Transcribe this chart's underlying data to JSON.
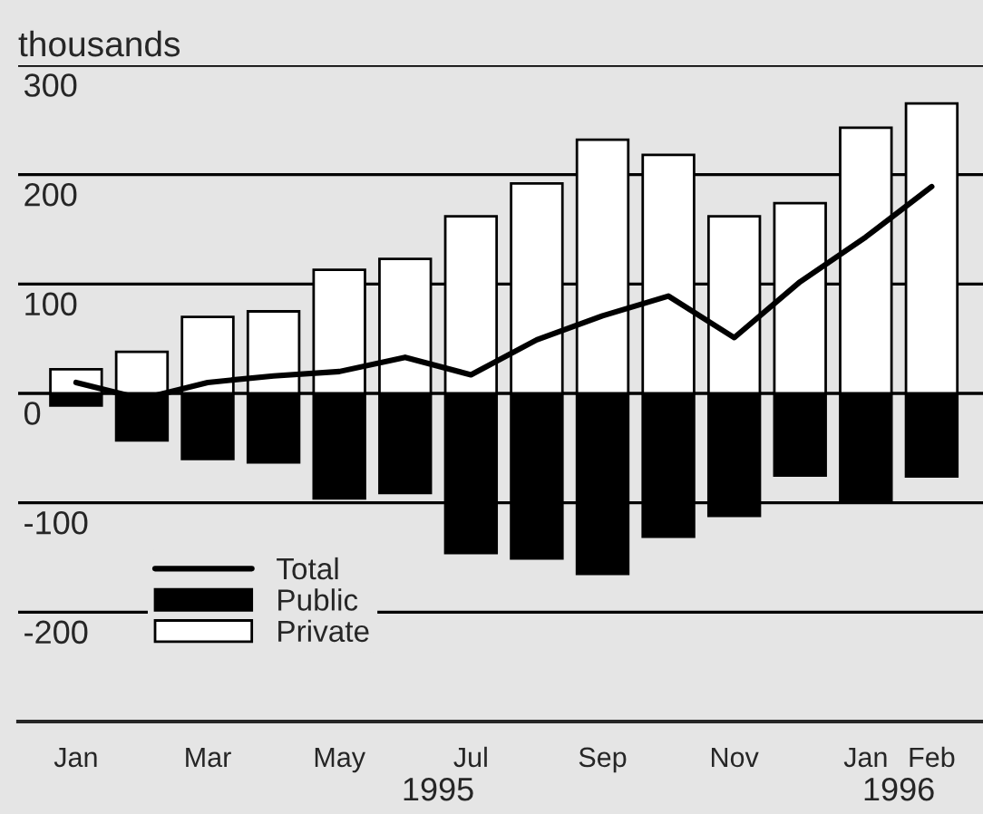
{
  "chart_data": {
    "type": "bar",
    "ylabel": "thousands",
    "stacked": true,
    "categories": [
      "Jan",
      null,
      "Mar",
      null,
      "May",
      null,
      "Jul",
      null,
      "Sep",
      null,
      "Nov",
      null,
      "Jan",
      "Feb"
    ],
    "series": [
      {
        "name": "Total",
        "type": "line",
        "color": "#000000",
        "values": [
          10,
          -5,
          10,
          16,
          20,
          33,
          17,
          49,
          71,
          89,
          51,
          102,
          143,
          189
        ]
      },
      {
        "name": "Public",
        "color": "#000000",
        "values": [
          -11,
          -43,
          -60,
          -63,
          -96,
          -91,
          -146,
          -151,
          -165,
          -131,
          -112,
          -75,
          -98,
          -76
        ]
      },
      {
        "name": "Private",
        "color": "#ffffff",
        "values": [
          22,
          38,
          70,
          75,
          113,
          123,
          162,
          192,
          232,
          218,
          162,
          174,
          243,
          265
        ]
      }
    ],
    "ylim": [
      -300,
      300
    ],
    "yticks": [
      -200,
      -100,
      0,
      100,
      200,
      300
    ],
    "grid": "y",
    "legend": "bottom left",
    "annotations": [
      "1995",
      "1996"
    ]
  }
}
